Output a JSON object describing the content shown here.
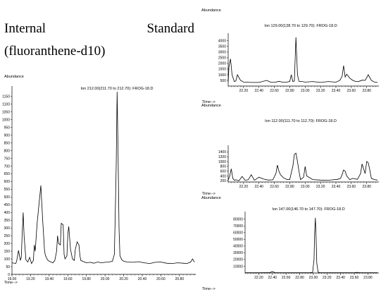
{
  "heading": {
    "line1_word1": "Internal",
    "line1_word2": "Standard",
    "line2": "(fluoranthene-d10)"
  },
  "chart_data": [
    {
      "type": "line",
      "title": "Ion 212.00(211.70 to 212.70): FROG-18.D",
      "ylabel": "Abundance",
      "xlabel": "Time-->",
      "xlim": [
        19.0,
        20.96
      ],
      "ylim": [
        0,
        1190
      ],
      "xticks": [
        "19.00",
        "19.20",
        "19.40",
        "19.60",
        "19.80",
        "20.00",
        "20.20",
        "20.40",
        "20.60",
        "20.80"
      ],
      "yticks": [
        "0",
        "50",
        "100",
        "150",
        "200",
        "250",
        "300",
        "350",
        "400",
        "450",
        "500",
        "550",
        "600",
        "650",
        "700",
        "750",
        "800",
        "850",
        "900",
        "950",
        "1000",
        "1050",
        "1100",
        "1150"
      ],
      "series": [
        {
          "x": [
            19.0,
            19.04,
            19.05,
            19.07,
            19.09,
            19.1,
            19.11,
            19.12,
            19.13,
            19.15,
            19.17,
            19.19,
            19.21,
            19.23,
            19.24,
            19.25,
            19.27,
            19.29,
            19.31,
            19.33,
            19.35,
            19.36,
            19.37,
            19.38,
            19.4,
            19.42,
            19.44,
            19.46,
            19.48,
            19.49,
            19.5,
            19.52,
            19.53,
            19.55,
            19.56,
            19.57,
            19.59,
            19.6,
            19.61,
            19.63,
            19.65,
            19.67,
            19.68,
            19.7,
            19.72,
            19.73,
            19.74,
            19.76,
            19.78,
            19.8,
            19.84,
            19.88,
            19.92,
            19.96,
            20.0,
            20.04,
            20.08,
            20.1,
            20.11,
            20.12,
            20.13,
            20.14,
            20.15,
            20.16,
            20.18,
            20.2,
            20.24,
            20.3,
            20.36,
            20.42,
            20.48,
            20.54,
            20.6,
            20.66,
            20.72,
            20.78,
            20.84,
            20.88,
            20.92,
            20.94,
            20.96
          ],
          "y": [
            75,
            70,
            85,
            155,
            90,
            110,
            260,
            400,
            250,
            95,
            80,
            110,
            70,
            90,
            190,
            150,
            330,
            450,
            575,
            350,
            150,
            120,
            110,
            95,
            85,
            80,
            75,
            90,
            150,
            250,
            200,
            190,
            330,
            320,
            130,
            100,
            120,
            260,
            310,
            160,
            100,
            90,
            160,
            210,
            190,
            120,
            90,
            85,
            80,
            75,
            78,
            72,
            80,
            75,
            78,
            80,
            85,
            130,
            400,
            700,
            1180,
            800,
            300,
            120,
            95,
            85,
            80,
            78,
            82,
            75,
            70,
            78,
            80,
            72,
            70,
            75,
            72,
            70,
            80,
            100,
            80
          ]
        }
      ]
    },
    {
      "type": "line",
      "title": "Ion 129.00(128.70 to 129.70): FROG-18.D",
      "ylabel": "Abundance",
      "xlabel": "Time-->",
      "xlim": [
        22.0,
        23.94
      ],
      "ylim": [
        0,
        4300
      ],
      "xticks": [
        "22.20",
        "22.40",
        "22.60",
        "22.80",
        "23.00",
        "23.20",
        "23.40",
        "23.60",
        "23.80"
      ],
      "yticks": [
        "500",
        "1000",
        "1500",
        "2000",
        "2500",
        "3000",
        "3500",
        "4000"
      ],
      "series": [
        {
          "x": [
            22.0,
            22.01,
            22.03,
            22.05,
            22.08,
            22.1,
            22.12,
            22.16,
            22.2,
            22.3,
            22.4,
            22.5,
            22.55,
            22.6,
            22.66,
            22.7,
            22.76,
            22.8,
            22.82,
            22.84,
            22.86,
            22.88,
            22.9,
            22.92,
            22.96,
            23.0,
            23.1,
            23.2,
            23.3,
            23.4,
            23.45,
            23.48,
            23.5,
            23.52,
            23.54,
            23.58,
            23.62,
            23.66,
            23.7,
            23.74,
            23.78,
            23.82,
            23.86,
            23.9,
            23.94
          ],
          "y": [
            350,
            1700,
            2400,
            1000,
            400,
            450,
            1000,
            500,
            350,
            320,
            320,
            500,
            350,
            320,
            420,
            350,
            350,
            400,
            1000,
            400,
            450,
            4300,
            1000,
            420,
            400,
            350,
            400,
            320,
            400,
            340,
            500,
            850,
            1800,
            800,
            1050,
            700,
            500,
            400,
            420,
            520,
            500,
            1000,
            500,
            350,
            320
          ]
        }
      ]
    },
    {
      "type": "line",
      "title": "Ion 112.00(111.70 to 112.70): FROG-18.D",
      "ylabel": "Abundance",
      "xlabel": "Time-->",
      "xlim": [
        22.0,
        23.94
      ],
      "ylim": [
        150,
        1500
      ],
      "xticks": [
        "22.20",
        "22.40",
        "22.60",
        "22.80",
        "23.00",
        "23.20",
        "23.40",
        "23.60",
        "23.80"
      ],
      "yticks": [
        "200",
        "400",
        "600",
        "800",
        "1000",
        "1200",
        "1400"
      ],
      "series": [
        {
          "x": [
            22.0,
            22.02,
            22.04,
            22.06,
            22.08,
            22.1,
            22.14,
            22.18,
            22.22,
            22.26,
            22.3,
            22.34,
            22.4,
            22.46,
            22.52,
            22.58,
            22.62,
            22.64,
            22.66,
            22.68,
            22.72,
            22.76,
            22.8,
            22.84,
            22.86,
            22.88,
            22.9,
            22.92,
            22.94,
            22.96,
            22.98,
            23.0,
            23.02,
            23.1,
            23.2,
            23.3,
            23.36,
            23.42,
            23.46,
            23.48,
            23.5,
            23.52,
            23.54,
            23.58,
            23.62,
            23.68,
            23.72,
            23.74,
            23.76,
            23.78,
            23.8,
            23.82,
            23.84,
            23.86,
            23.9,
            23.94
          ],
          "y": [
            230,
            400,
            700,
            300,
            220,
            240,
            200,
            380,
            220,
            240,
            450,
            220,
            350,
            270,
            230,
            240,
            500,
            850,
            600,
            450,
            320,
            260,
            250,
            800,
            1300,
            1350,
            1000,
            600,
            250,
            300,
            350,
            800,
            400,
            250,
            230,
            220,
            240,
            260,
            300,
            450,
            650,
            600,
            400,
            250,
            300,
            260,
            500,
            900,
            700,
            500,
            1000,
            950,
            650,
            300,
            250,
            230
          ]
        }
      ]
    },
    {
      "type": "line",
      "title": "Ion 147.00(146.70 to 147.70): FROG-18.D",
      "ylabel": "Abundance",
      "xlabel": "Time-->",
      "xlim": [
        22.0,
        23.94
      ],
      "ylim": [
        0,
        85000
      ],
      "xticks": [
        "22.20",
        "22.40",
        "22.60",
        "22.80",
        "23.00",
        "23.20",
        "23.40",
        "23.60",
        "23.80"
      ],
      "yticks": [
        "10000",
        "20000",
        "30000",
        "40000",
        "50000",
        "60000",
        "70000",
        "80000"
      ],
      "series": [
        {
          "x": [
            22.0,
            22.2,
            22.36,
            22.4,
            22.44,
            22.6,
            22.8,
            22.95,
            22.99,
            23.01,
            23.02,
            23.03,
            23.04,
            23.05,
            23.07,
            23.1,
            23.2,
            23.4,
            23.6,
            23.64,
            23.68,
            23.8,
            23.94
          ],
          "y": [
            300,
            300,
            500,
            2000,
            400,
            300,
            300,
            300,
            800,
            20000,
            60000,
            82000,
            55000,
            15000,
            1200,
            400,
            300,
            300,
            300,
            900,
            300,
            300,
            300
          ]
        }
      ]
    }
  ]
}
